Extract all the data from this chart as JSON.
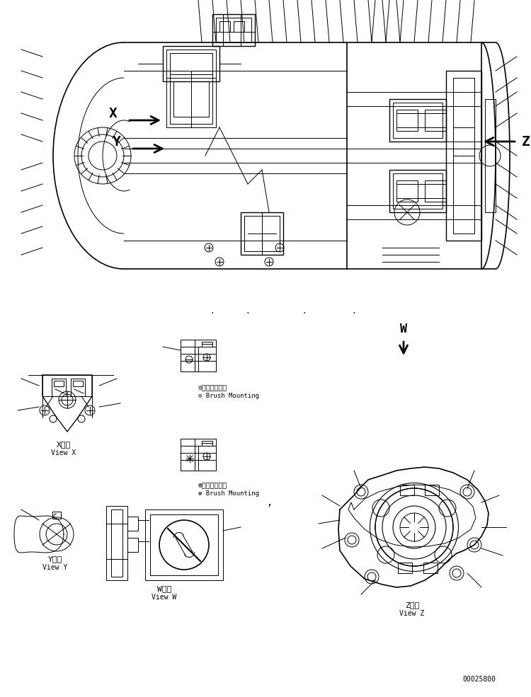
{
  "title": "",
  "bg_color": "#ffffff",
  "line_color": "#000000",
  "text_color": "#000000",
  "part_number": "00025800",
  "views": {
    "main": {
      "label_x": "X",
      "label_y": "Y",
      "label_z": "Z"
    },
    "bottom_left_x": {
      "title_jp": "X　視",
      "title_en": "View X"
    },
    "bottom_left_y": {
      "title_jp": "Y　視",
      "title_en": "View Y"
    },
    "bottom_center_w": {
      "title_jp": "W　視",
      "title_en": "View W"
    },
    "bottom_right_z": {
      "title_jp": "Z　視",
      "title_en": "View Z"
    }
  },
  "brush_neg": {
    "jp": "⊙ブラシ取付法",
    "en": "⊙ Brush Mounting"
  },
  "brush_pos": {
    "jp": "⊕ブラシ取付法",
    "en": "⊕ Brush Mounting"
  },
  "w_arrow_label": "W"
}
